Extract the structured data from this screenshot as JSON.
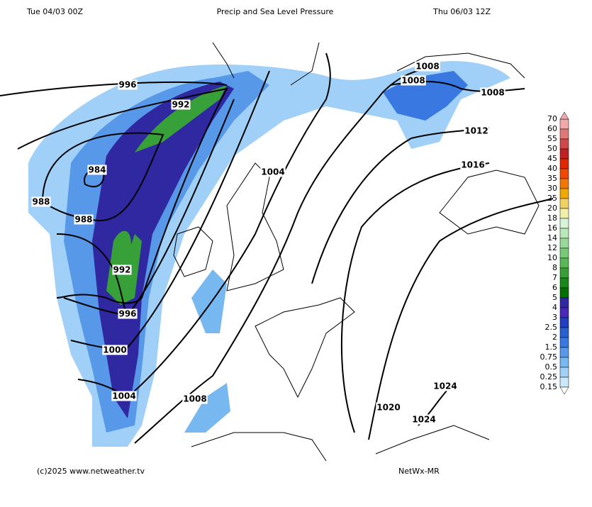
{
  "header": {
    "left": "Tue 04/03 00Z",
    "title": "Precip and Sea Level Pressure",
    "right": "Thu 06/03 12Z"
  },
  "footer": {
    "copyright": "(c)2025 www.netweather.tv",
    "model": "NetWx-MR"
  },
  "legend": {
    "labels": [
      "70",
      "60",
      "55",
      "50",
      "45",
      "40",
      "35",
      "30",
      "25",
      "20",
      "18",
      "16",
      "14",
      "12",
      "10",
      "8",
      "7",
      "6",
      "5",
      "4",
      "3",
      "2.5",
      "2",
      "1.5",
      "0.75",
      "0.5",
      "0.25",
      "0.15"
    ],
    "colors": [
      "#f0a8a8",
      "#e07878",
      "#d04848",
      "#c02020",
      "#e02800",
      "#f04800",
      "#f07800",
      "#f0a800",
      "#f0d060",
      "#f0f0a8",
      "#d8f4d8",
      "#b8e8b8",
      "#98d898",
      "#78c878",
      "#58b858",
      "#38a038",
      "#188818",
      "#007000",
      "#3028a0",
      "#4828b8",
      "#2040c0",
      "#2860d0",
      "#3878e0",
      "#5898e8",
      "#78b8f0",
      "#a0d0f8",
      "#c8e8fc"
    ]
  },
  "isobars": [
    "996",
    "992",
    "984",
    "988",
    "988",
    "992",
    "996",
    "1000",
    "1004",
    "1008",
    "1004",
    "1008",
    "1008",
    "1008",
    "1012",
    "1016",
    "1020",
    "1024",
    "1024"
  ]
}
